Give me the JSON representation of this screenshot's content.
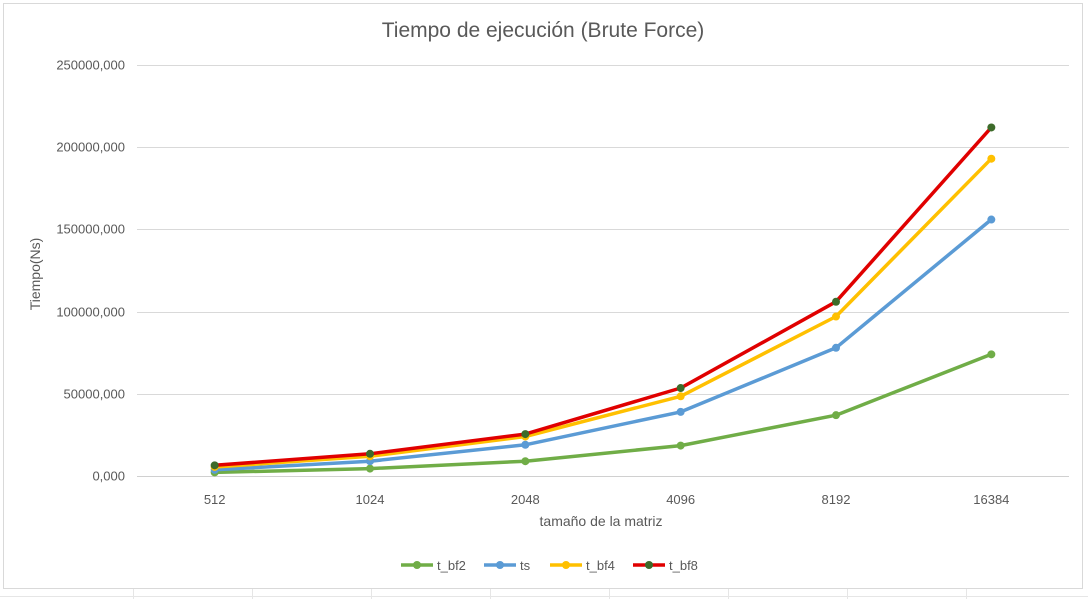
{
  "chart_data": {
    "type": "line",
    "title": "Tiempo de ejecución (Brute Force)",
    "xlabel": "tamaño de la matriz",
    "ylabel": "Tiempo(Ns)",
    "categories": [
      "512",
      "1024",
      "2048",
      "4096",
      "8192",
      "16384"
    ],
    "ylim": [
      0,
      250000000
    ],
    "yticks": [
      0,
      50000000,
      100000000,
      150000000,
      200000000,
      250000000
    ],
    "ytick_labels": [
      "0,000",
      "50000,000",
      "100000,000",
      "150000,000",
      "200000,000",
      "250000,000"
    ],
    "grid": true,
    "legend": "bottom",
    "series": [
      {
        "name": "t_bf2",
        "color": "#70ad47",
        "marker": "#70ad47",
        "values": [
          2200000,
          4500000,
          9000000,
          18500000,
          37000000,
          74000000
        ]
      },
      {
        "name": "ts",
        "color": "#5b9bd5",
        "marker": "#5b9bd5",
        "values": [
          3800000,
          9000000,
          19000000,
          39000000,
          78000000,
          156000000
        ]
      },
      {
        "name": "t_bf4",
        "color": "#ffc000",
        "marker": "#ffc000",
        "values": [
          5500000,
          12000000,
          24000000,
          48500000,
          97000000,
          193000000
        ]
      },
      {
        "name": "t_bf8",
        "color": "#e00000",
        "marker": "#3d6b2a",
        "values": [
          6500000,
          13500000,
          25500000,
          53500000,
          106000000,
          212000000
        ]
      }
    ]
  }
}
